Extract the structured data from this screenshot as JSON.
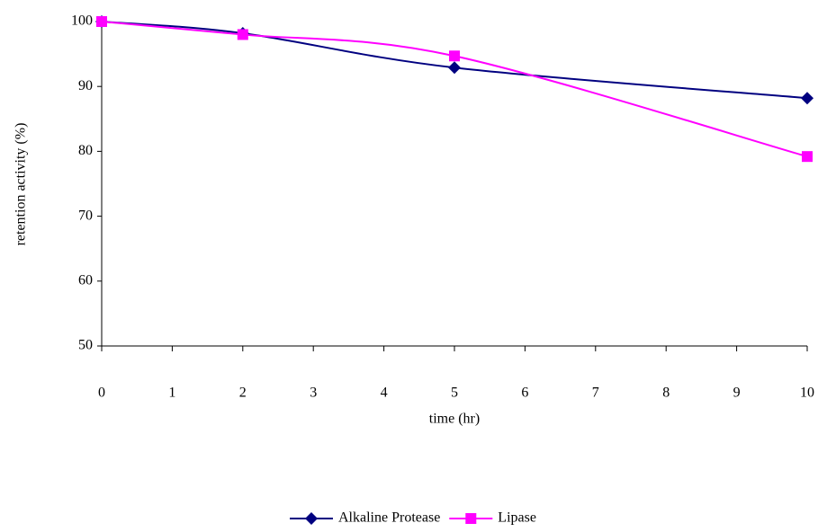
{
  "chart_data": {
    "type": "line",
    "x_label": "time (hr)",
    "y_label": "retention activity (%)",
    "x": [
      0,
      2,
      5,
      10
    ],
    "series": [
      {
        "name": "Alkaline Protease",
        "color": "#000080",
        "marker": "diamond",
        "values": [
          100,
          98.2,
          92.9,
          88.2
        ]
      },
      {
        "name": "Lipase",
        "color": "#ff00ff",
        "marker": "square",
        "values": [
          100,
          98,
          94.7,
          79.2
        ]
      }
    ],
    "xlim": [
      0,
      10
    ],
    "xticks": [
      0,
      1,
      2,
      3,
      4,
      5,
      6,
      7,
      8,
      9,
      10
    ],
    "ylim": [
      50,
      100
    ],
    "yticks": [
      50,
      60,
      70,
      80,
      90,
      100
    ],
    "grid": false,
    "smooth": true,
    "legend": "bottom"
  }
}
